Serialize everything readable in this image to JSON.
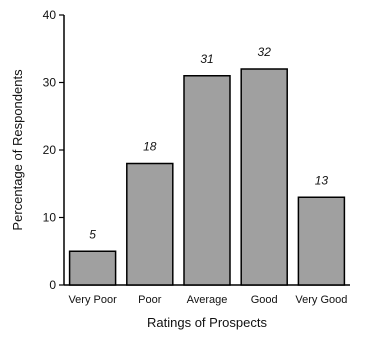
{
  "chart_data": {
    "type": "bar",
    "categories": [
      "Very Poor",
      "Poor",
      "Average",
      "Good",
      "Very Good"
    ],
    "values": [
      5,
      18,
      31,
      32,
      13
    ],
    "data_labels": [
      "5",
      "18",
      "31",
      "32",
      "13"
    ],
    "title": "",
    "xlabel": "Ratings of Prospects",
    "ylabel": "Percentage of Respondents",
    "ylim": [
      0,
      40
    ],
    "yticks": [
      0,
      10,
      20,
      30,
      40
    ],
    "grid": false,
    "bar_color": "#a0a0a0"
  }
}
